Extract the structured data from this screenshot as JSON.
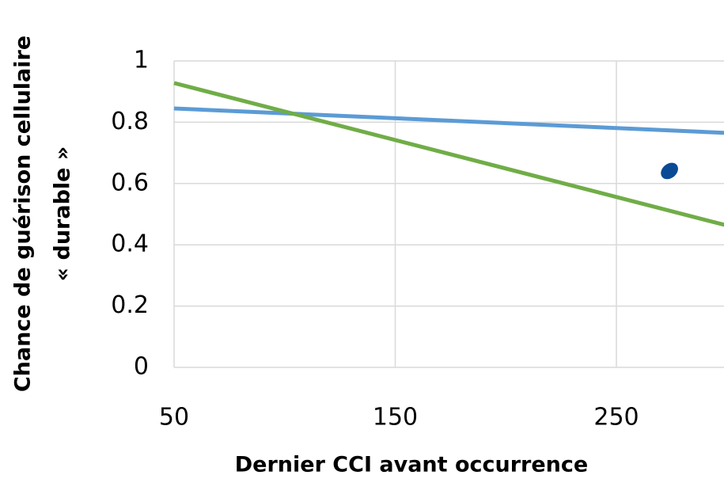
{
  "chart_data": {
    "type": "line",
    "x_label": "Dernier CCI avant occurrence",
    "y_label": [
      "Chance de guérison cellulaire",
      "« durable »"
    ],
    "xlim": [
      50,
      300
    ],
    "xticks": [
      50,
      150,
      250
    ],
    "ylim": [
      0,
      1
    ],
    "yticks": [
      0,
      0.2,
      0.4,
      0.6,
      0.8,
      1
    ],
    "grid": true,
    "series": [
      {
        "color": "#5b9bd5",
        "x": [
          50,
          300
        ],
        "values": [
          0.845,
          0.765
        ],
        "mode": "line"
      },
      {
        "color": "#70ad47",
        "x": [
          50,
          300
        ],
        "values": [
          0.928,
          0.463
        ],
        "mode": "line"
      },
      {
        "color": "#0a4a94",
        "x": [
          274
        ],
        "values": [
          0.641
        ],
        "mode": "marker"
      }
    ]
  }
}
